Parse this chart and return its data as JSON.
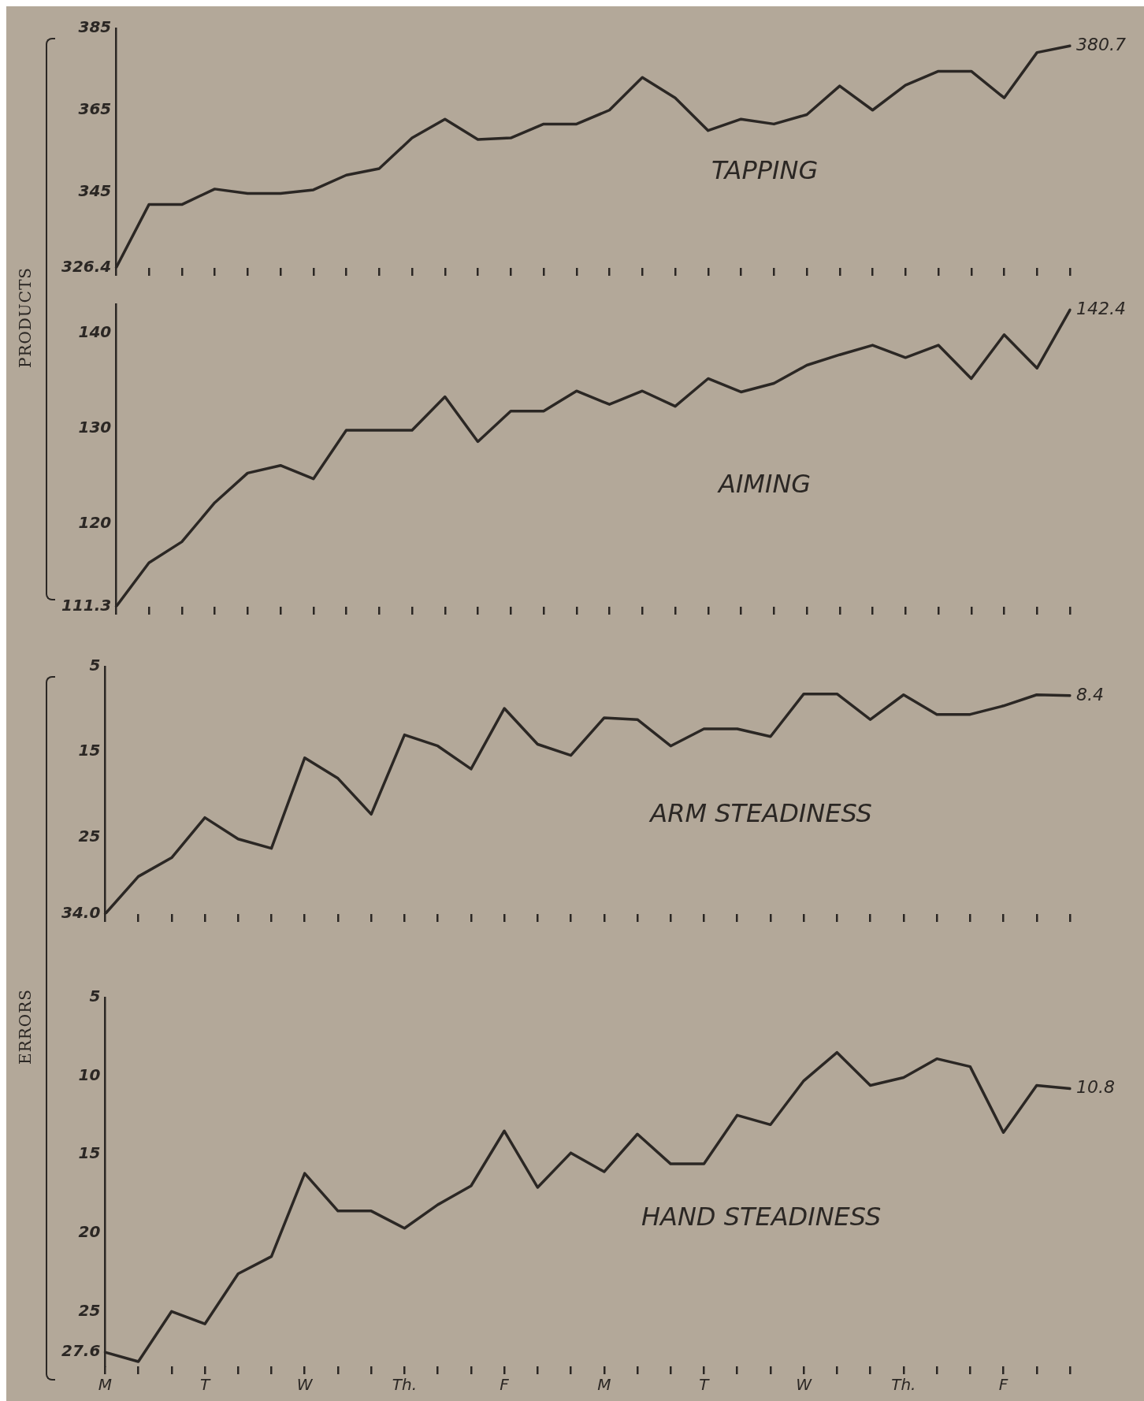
{
  "chart_data": [
    {
      "type": "line",
      "title": "TAPPING",
      "ylabel": "PRODUCTS",
      "tick_labels": "y",
      "categories": [
        null,
        null,
        null,
        null,
        null,
        null,
        null,
        null,
        null,
        null,
        null,
        null,
        null,
        null,
        null,
        null,
        null,
        null,
        null,
        null,
        null,
        null,
        null,
        null,
        null,
        null,
        null,
        null,
        null,
        null
      ],
      "ylim": [
        326.4,
        385
      ],
      "yticks": [
        326.4,
        345,
        365,
        385
      ],
      "series": [
        {
          "color": "#2b2724",
          "values": [
            326.4,
            341.9,
            341.9,
            345.7,
            344.6,
            344.6,
            345.5,
            349.1,
            350.7,
            358.2,
            362.8,
            357.8,
            358.2,
            361.6,
            361.6,
            365,
            373,
            368,
            360,
            362.8,
            361.6,
            363.9,
            370.9,
            365,
            371.1,
            374.5,
            374.5,
            368,
            379.1,
            380.7
          ],
          "value_labels": [
            null,
            null,
            null,
            null,
            null,
            null,
            null,
            null,
            null,
            null,
            null,
            null,
            null,
            null,
            null,
            null,
            null,
            null,
            null,
            null,
            null,
            null,
            null,
            null,
            null,
            null,
            null,
            null,
            null,
            "380.7"
          ]
        }
      ]
    },
    {
      "type": "line",
      "title": "AIMING",
      "tick_labels": "y",
      "categories": [
        null,
        null,
        null,
        null,
        null,
        null,
        null,
        null,
        null,
        null,
        null,
        null,
        null,
        null,
        null,
        null,
        null,
        null,
        null,
        null,
        null,
        null,
        null,
        null,
        null,
        null,
        null,
        null,
        null,
        null
      ],
      "ylim": [
        111.3,
        143
      ],
      "yticks": [
        111.3,
        120,
        130,
        140
      ],
      "series": [
        {
          "color": "#2b2724",
          "values": [
            111.3,
            115.9,
            118.1,
            122.2,
            125.3,
            126.1,
            124.7,
            129.8,
            129.8,
            129.8,
            133.3,
            128.6,
            131.8,
            131.8,
            133.9,
            132.5,
            133.9,
            132.3,
            135.2,
            133.8,
            134.7,
            136.6,
            137.7,
            138.7,
            137.4,
            138.7,
            135.2,
            139.8,
            136.3,
            142.4
          ],
          "value_labels": [
            null,
            null,
            null,
            null,
            null,
            null,
            null,
            null,
            null,
            null,
            null,
            null,
            null,
            null,
            null,
            null,
            null,
            null,
            null,
            null,
            null,
            null,
            null,
            null,
            null,
            null,
            null,
            null,
            null,
            "142.4"
          ]
        }
      ]
    },
    {
      "type": "line",
      "title": "ARM STEADINESS",
      "ylabel": "ERRORS",
      "tick_labels": "y",
      "categories": [
        null,
        null,
        null,
        null,
        null,
        null,
        null,
        null,
        null,
        null,
        null,
        null,
        null,
        null,
        null,
        null,
        null,
        null,
        null,
        null,
        null,
        null,
        null,
        null,
        null,
        null,
        null,
        null,
        null,
        null
      ],
      "ylim": [
        34,
        5
      ],
      "yticks": [
        {
          "value": 34,
          "label": "34.0"
        },
        25,
        15,
        5
      ],
      "series": [
        {
          "color": "#2b2724",
          "values": [
            34.0,
            29.6,
            27.4,
            22.7,
            25.2,
            26.3,
            15.7,
            18.1,
            22.3,
            13.0,
            14.3,
            17.0,
            9.9,
            14.1,
            15.4,
            11.0,
            11.2,
            14.3,
            12.3,
            12.3,
            13.2,
            8.2,
            8.2,
            11.2,
            8.3,
            10.6,
            10.6,
            9.6,
            8.3,
            8.4
          ],
          "value_labels": [
            null,
            null,
            null,
            null,
            null,
            null,
            null,
            null,
            null,
            null,
            null,
            null,
            null,
            null,
            null,
            null,
            null,
            null,
            null,
            null,
            null,
            null,
            null,
            null,
            null,
            null,
            null,
            null,
            null,
            "8.4"
          ]
        }
      ]
    },
    {
      "type": "line",
      "title": "HAND STEADINESS",
      "categories": [
        "M",
        null,
        null,
        "T",
        null,
        null,
        "W",
        null,
        null,
        "Th.",
        null,
        null,
        "F",
        null,
        null,
        "M",
        null,
        null,
        "T",
        null,
        null,
        "W",
        null,
        null,
        "Th.",
        null,
        null,
        "F",
        null,
        null
      ],
      "ylim": [
        28.5,
        5
      ],
      "yticks": [
        27.6,
        25,
        20,
        15,
        10,
        5
      ],
      "series": [
        {
          "color": "#2b2724",
          "values": [
            27.6,
            28.2,
            25.0,
            25.8,
            22.6,
            21.5,
            16.2,
            18.6,
            18.6,
            19.7,
            18.2,
            17.0,
            13.5,
            17.1,
            14.9,
            16.1,
            13.7,
            15.6,
            15.6,
            12.5,
            13.1,
            10.3,
            8.5,
            10.6,
            10.1,
            8.9,
            9.4,
            13.6,
            10.6,
            10.8
          ],
          "value_labels": [
            null,
            null,
            null,
            null,
            null,
            null,
            null,
            null,
            null,
            null,
            null,
            null,
            null,
            null,
            null,
            null,
            null,
            null,
            null,
            null,
            null,
            null,
            null,
            null,
            null,
            null,
            null,
            null,
            null,
            "10.8"
          ]
        }
      ]
    }
  ]
}
